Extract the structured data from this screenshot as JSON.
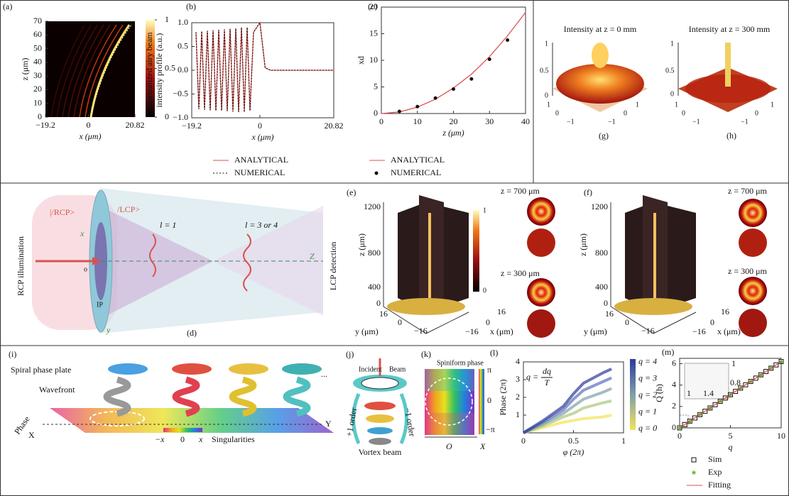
{
  "chart_data": [
    {
      "type": "heatmap",
      "panel_label": "(a)",
      "xlabel": "x (μm)",
      "ylabel": "z (μm)",
      "xlim": [
        -19.2,
        20.82
      ],
      "ylim": [
        0,
        70
      ],
      "xticks": [
        {
          "value": -19.2,
          "label": "−19.2"
        },
        0,
        20.82
      ],
      "yticks": [
        0,
        10,
        20,
        30,
        40,
        50,
        60,
        70
      ],
      "clim": [
        0,
        1
      ],
      "cticks": [
        0,
        0.5,
        1
      ]
    },
    {
      "type": "line",
      "panel_label": "(b)",
      "xlabel": "x (μm)",
      "ylabel": [
        "Normalized airy beam",
        "intensity profile (a.u.)"
      ],
      "xlim": [
        -19.2,
        20.82
      ],
      "ylim": [
        -1,
        1
      ],
      "xticks": [
        {
          "value": -19.2,
          "label": "−19.2"
        },
        0,
        20.82
      ],
      "yticks": [
        {
          "value": -1,
          "label": "−1.0"
        },
        {
          "value": -0.5,
          "label": "−0.5"
        },
        {
          "value": 0,
          "label": "0.0"
        },
        {
          "value": 0.5,
          "label": "0.5"
        },
        {
          "value": 1,
          "label": "1.0"
        }
      ],
      "series": [
        {
          "name": "ANALYTICAL",
          "color": "#d9534f",
          "style": "line",
          "x": [
            -18,
            -17.2,
            -16.4,
            -15.6,
            -14.8,
            -14,
            -13.2,
            -12.4,
            -11.6,
            -10.8,
            -10,
            -9.2,
            -8.4,
            -7.6,
            -6.8,
            -6,
            -5.2,
            -4.4,
            -3.6,
            -2.8,
            -1.8,
            0,
            1.5,
            3,
            20.82
          ],
          "values": [
            0.8,
            -0.82,
            0.82,
            -0.83,
            0.83,
            -0.84,
            0.84,
            -0.85,
            0.85,
            -0.85,
            0.86,
            -0.86,
            0.87,
            -0.87,
            0.88,
            -0.88,
            0.9,
            -0.88,
            0.9,
            -0.85,
            0.8,
            1.0,
            0.05,
            0,
            0
          ]
        },
        {
          "name": "NUMERICAL",
          "color": "#111111",
          "style": "dotted",
          "x": [
            -18,
            -17.2,
            -16.4,
            -15.6,
            -14.8,
            -14,
            -13.2,
            -12.4,
            -11.6,
            -10.8,
            -10,
            -9.2,
            -8.4,
            -7.6,
            -6.8,
            -6,
            -5.2,
            -4.4,
            -3.6,
            -2.8,
            -1.8,
            0,
            1.5,
            3,
            20.82
          ],
          "values": [
            0.8,
            -0.82,
            0.82,
            -0.83,
            0.83,
            -0.84,
            0.84,
            -0.85,
            0.85,
            -0.85,
            0.86,
            -0.86,
            0.87,
            -0.87,
            0.88,
            -0.88,
            0.9,
            -0.88,
            0.9,
            -0.85,
            0.8,
            1.0,
            0.05,
            0,
            0
          ]
        }
      ]
    },
    {
      "type": "line",
      "panel_label": "(c)",
      "xlabel": "z (μm)",
      "ylabel": "xd",
      "xlim": [
        0,
        40
      ],
      "ylim": [
        0,
        20
      ],
      "xticks": [
        0,
        10,
        20,
        30,
        40
      ],
      "yticks": [
        0,
        5,
        10,
        15,
        20
      ],
      "series": [
        {
          "name": "ANALYTICAL",
          "color": "#d9534f",
          "style": "line",
          "x": [
            0,
            5,
            10,
            15,
            20,
            25,
            30,
            35,
            40
          ],
          "values": [
            0,
            0.3,
            1.2,
            2.7,
            4.8,
            7.4,
            10.7,
            14.6,
            19
          ]
        },
        {
          "name": "NUMERICAL",
          "color": "#111111",
          "style": "markers",
          "marker": "dot",
          "x": [
            5,
            10,
            15,
            20,
            25,
            30,
            35
          ],
          "values": [
            0.4,
            1.3,
            2.9,
            4.6,
            6.5,
            10.2,
            13.8
          ]
        }
      ]
    },
    {
      "type": "line",
      "panel_label": "(l)",
      "xlabel": "φ (2π)",
      "ylabel": "Phase (2π)",
      "xlim": [
        0,
        1
      ],
      "ylim": [
        0,
        4
      ],
      "xticks": [
        0,
        0.5,
        1
      ],
      "yticks": [
        1,
        2,
        3,
        4
      ],
      "annotation": {
        "lhs": "q =",
        "num": "dq",
        "den": "T"
      },
      "series": [
        {
          "name": "q = 0",
          "color": "#f2e35a",
          "style": "band",
          "x": [
            0,
            0.2,
            0.4,
            0.5,
            0.6,
            0.8,
            0.88
          ],
          "values": [
            0,
            0.3,
            0.6,
            0.7,
            0.8,
            0.9,
            1.0
          ]
        },
        {
          "name": "q = 1",
          "color": "#a9c77a",
          "style": "band",
          "x": [
            0,
            0.2,
            0.4,
            0.5,
            0.6,
            0.8,
            0.88
          ],
          "values": [
            0,
            0.4,
            0.9,
            1.1,
            1.4,
            1.7,
            1.8
          ]
        },
        {
          "name": "q = 2",
          "color": "#7fa0a8",
          "style": "band",
          "x": [
            0,
            0.2,
            0.4,
            0.5,
            0.6,
            0.8,
            0.88
          ],
          "values": [
            0,
            0.5,
            1.1,
            1.5,
            1.9,
            2.3,
            2.5
          ]
        },
        {
          "name": "q = 3",
          "color": "#5d6fb8",
          "style": "band",
          "x": [
            0,
            0.2,
            0.4,
            0.5,
            0.6,
            0.8,
            0.88
          ],
          "values": [
            0,
            0.6,
            1.3,
            1.9,
            2.4,
            2.9,
            3.1
          ]
        },
        {
          "name": "q = 4",
          "color": "#2b3a9a",
          "style": "band",
          "x": [
            0,
            0.2,
            0.4,
            0.5,
            0.6,
            0.8,
            0.88
          ],
          "values": [
            0,
            0.7,
            1.5,
            2.2,
            2.8,
            3.4,
            3.6
          ]
        }
      ]
    },
    {
      "type": "line",
      "panel_label": "(m)",
      "xlabel": "q",
      "ylabel": "Q (h)",
      "xlim": [
        0,
        10
      ],
      "ylim": [
        0,
        6.5
      ],
      "xticks": [
        0,
        5,
        10
      ],
      "yticks": [
        0,
        2,
        4,
        6
      ],
      "inset_labels": [
        "1",
        "1.4",
        "1",
        "0.8"
      ],
      "series": [
        {
          "name": "Sim",
          "color": "#111111",
          "style": "markers",
          "marker": "square",
          "x": [
            0,
            0.5,
            1,
            1.5,
            2,
            2.5,
            3,
            3.5,
            4,
            4.5,
            5,
            5.5,
            6,
            6.5,
            7,
            7.5,
            8,
            8.5,
            9,
            9.5,
            10
          ],
          "values": [
            0,
            0.31,
            0.62,
            0.93,
            1.24,
            1.55,
            1.86,
            2.17,
            2.48,
            2.79,
            3.1,
            3.41,
            3.72,
            4.03,
            4.34,
            4.65,
            4.96,
            5.27,
            5.58,
            5.89,
            6.2
          ]
        },
        {
          "name": "Exp",
          "color": "#5cb82e",
          "style": "markers",
          "marker": "star",
          "x": [
            0,
            1,
            2,
            3,
            4,
            5,
            6,
            7,
            8,
            9,
            10
          ],
          "values": [
            0,
            0.6,
            1.25,
            1.85,
            2.5,
            3.1,
            3.7,
            4.35,
            4.95,
            5.6,
            6.2
          ]
        },
        {
          "name": "Fitting",
          "color": "#d9534f",
          "style": "line",
          "x": [
            0,
            10
          ],
          "values": [
            0,
            6.2
          ]
        }
      ]
    }
  ],
  "figure": {
    "g": {
      "label": "(g)",
      "title": "Intensity at z = 0 mm",
      "ticks": [
        "1",
        "0.5",
        "0",
        "1",
        "0",
        "−1",
        "−1",
        "0",
        "1"
      ]
    },
    "h": {
      "label": "(h)",
      "title": "Intensity at z = 300 mm",
      "ticks": [
        "1",
        "0.5",
        "0",
        "1",
        "0",
        "−1",
        "−1",
        "0",
        "1"
      ]
    },
    "d": {
      "label": "(d)",
      "illumination": "RCP illumination",
      "rcp": "|/RCP>",
      "lcp": "/LCP>",
      "l1": "l = 1",
      "l34": "l = 3 or 4",
      "z": "Z",
      "x": "x",
      "o": "o",
      "ip": "IP",
      "y": "y"
    },
    "e": {
      "label": "(e)",
      "detection": "LCP detection",
      "zlabel": "z (μm)",
      "zticks": [
        "1200",
        "800",
        "400",
        "0"
      ],
      "yticks": [
        "16",
        "0",
        "−16"
      ],
      "ylabel": "y (μm)",
      "xticks": [
        "16",
        "0",
        "−16"
      ],
      "xlabel": "x (μm)",
      "cticks": [
        "1",
        "0"
      ],
      "z700": "z = 700 μm",
      "z300": "z = 300 μm"
    },
    "f": {
      "label": "(f)",
      "zlabel": "z (μm)",
      "zticks": [
        "1200",
        "800",
        "400",
        "0"
      ],
      "yticks": [
        "16",
        "0",
        "−16"
      ],
      "ylabel": "y (μm)",
      "xticks": [
        "16",
        "0",
        "−16"
      ],
      "xlabel": "x (μm)",
      "z700": "z = 700 μm",
      "z300": "z = 300 μm"
    },
    "i": {
      "label": "(i)",
      "plate": "Spiral phase plate",
      "wavefront": "Wavefront",
      "phase": "Phase",
      "X": "X",
      "Y": "Y",
      "scale": [
        "−x",
        "0",
        "x"
      ],
      "singularities": "Singularities",
      "dots": "..."
    },
    "j": {
      "label": "(j)",
      "incident": "Incident",
      "beam": "Beam",
      "plus": "+1 order",
      "minus": "−1 order",
      "vortex": "Vortex beam"
    },
    "k": {
      "label": "(k)",
      "title": "Spiniform phase",
      "cticks": [
        "π",
        "0",
        "−π"
      ],
      "O": "O",
      "X": "X"
    }
  }
}
